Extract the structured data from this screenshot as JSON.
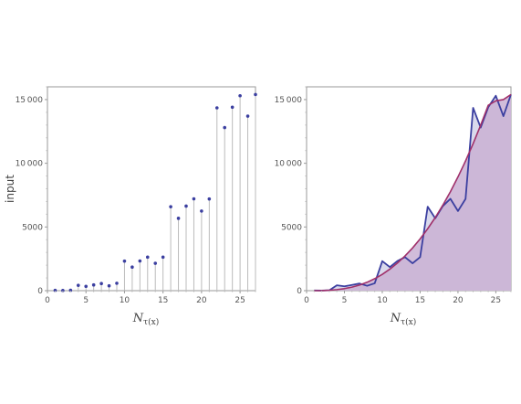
{
  "chart_data": [
    {
      "type": "scatter",
      "style": "stem-plot",
      "xlabel_main": "N",
      "xlabel_sub": "τ(x)",
      "ylabel": "input",
      "xlim": [
        0,
        27
      ],
      "ylim": [
        0,
        16000
      ],
      "xticks": [
        0,
        5,
        10,
        15,
        20,
        25
      ],
      "yticks": [
        0,
        5000,
        10000,
        15000
      ],
      "ytick_labels": [
        "0",
        "5000",
        "10 000",
        "15 000"
      ],
      "grid": false,
      "point_color": "#3b3fa0",
      "stem_color": "#bbbbbb",
      "series": [
        {
          "x": [
            1,
            2,
            3,
            4,
            5,
            6,
            7,
            8,
            9,
            10,
            11,
            12,
            13,
            14,
            15,
            16,
            17,
            18,
            19,
            20,
            21,
            22,
            23,
            24,
            25,
            26,
            27
          ],
          "y": [
            20,
            10,
            30,
            420,
            340,
            450,
            560,
            380,
            580,
            2320,
            1850,
            2330,
            2630,
            2150,
            2630,
            6590,
            5680,
            6640,
            7210,
            6250,
            7200,
            14350,
            12800,
            14400,
            15300,
            13700,
            15400
          ]
        }
      ]
    },
    {
      "type": "area",
      "xlabel_main": "N",
      "xlabel_sub": "τ(x)",
      "ylabel": "",
      "xlim": [
        0,
        27
      ],
      "ylim": [
        0,
        16000
      ],
      "xticks": [
        0,
        5,
        10,
        15,
        20,
        25
      ],
      "yticks": [
        0,
        5000,
        10000,
        15000
      ],
      "ytick_labels": [
        "0",
        "5000",
        "10 000",
        "15 000"
      ],
      "grid": false,
      "series": [
        {
          "kind": "line-filled",
          "color": "#3b3fa0",
          "fill": "#d9d9ec",
          "x": [
            1,
            2,
            3,
            4,
            5,
            6,
            7,
            8,
            9,
            10,
            11,
            12,
            13,
            14,
            15,
            16,
            17,
            18,
            19,
            20,
            21,
            22,
            23,
            24,
            25,
            26,
            27
          ],
          "y": [
            20,
            10,
            30,
            420,
            340,
            450,
            560,
            380,
            580,
            2320,
            1850,
            2330,
            2630,
            2150,
            2630,
            6590,
            5680,
            6640,
            7210,
            6250,
            7200,
            14350,
            12800,
            14400,
            15300,
            13700,
            15400
          ]
        },
        {
          "kind": "curve-filled",
          "color": "#a0306a",
          "fill": "#c9b0d4",
          "x": [
            1,
            2,
            3,
            4,
            5,
            6,
            7,
            8,
            9,
            10,
            11,
            12,
            13,
            14,
            15,
            16,
            17,
            18,
            19,
            20,
            21,
            22,
            23,
            24,
            25,
            26,
            27
          ],
          "y": [
            0,
            6,
            30,
            80,
            160,
            280,
            440,
            660,
            940,
            1280,
            1690,
            2170,
            2720,
            3350,
            4060,
            4860,
            5740,
            6710,
            7770,
            8930,
            10180,
            11540,
            12990,
            14550,
            14900,
            15000,
            15400
          ]
        }
      ]
    }
  ]
}
